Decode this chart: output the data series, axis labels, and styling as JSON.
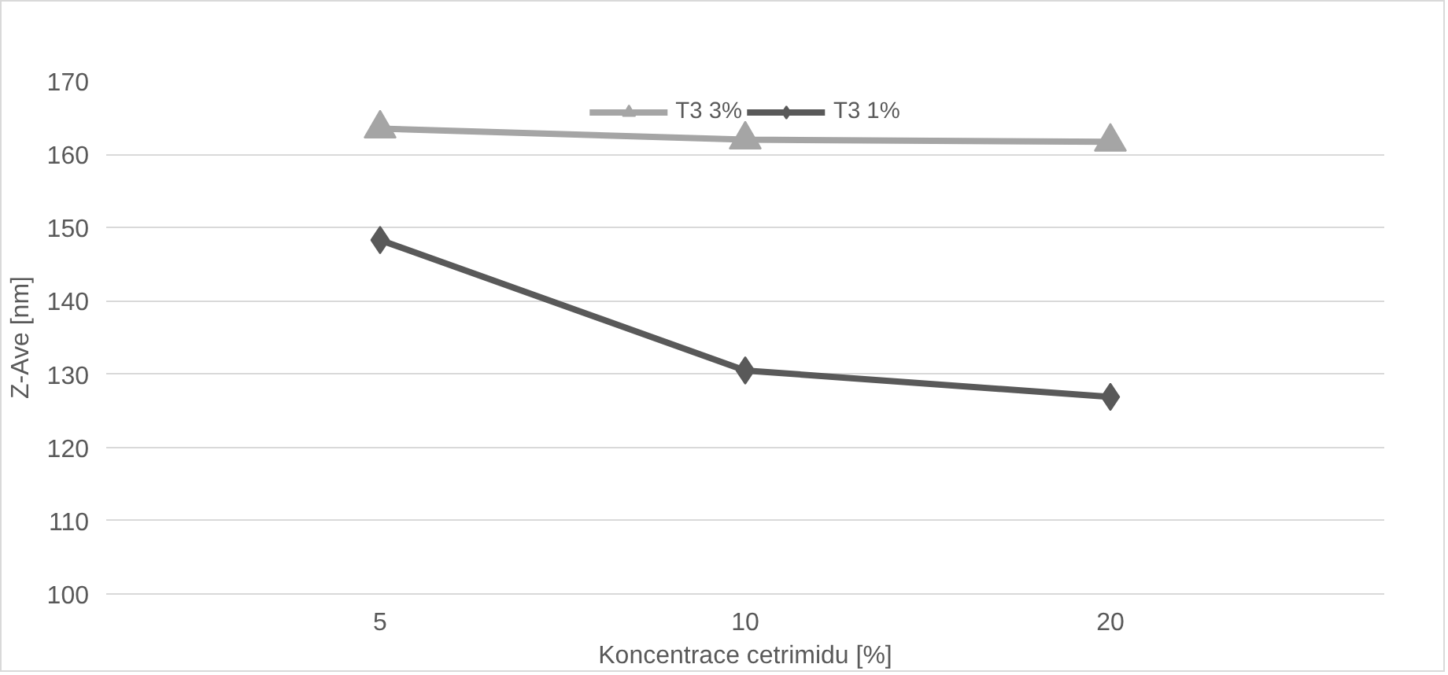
{
  "chart_data": {
    "type": "line",
    "xlabel": "Koncentrace cetrimidu [%]",
    "ylabel": "Z-Ave [nm]",
    "categories": [
      "5",
      "10",
      "20"
    ],
    "series": [
      {
        "name": "T3 3%",
        "color": "#a5a5a5",
        "marker": "triangle",
        "values": [
          163.5,
          162.0,
          161.7
        ]
      },
      {
        "name": "T3 1%",
        "color": "#595959",
        "marker": "diamond",
        "values": [
          148.3,
          130.5,
          126.9
        ]
      }
    ],
    "ylim": [
      100,
      170
    ],
    "yticks": [
      100,
      110,
      120,
      130,
      140,
      150,
      160,
      170
    ],
    "grid": "y",
    "legend": "top"
  }
}
